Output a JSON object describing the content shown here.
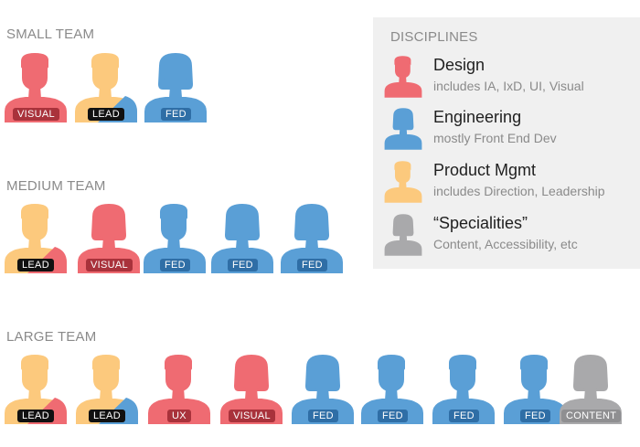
{
  "colors": {
    "design": "#ef6b72",
    "engineering": "#5a9fd6",
    "product": "#fcc97d",
    "specialities": "#a9a9ab",
    "badge_visual": "#a9323b",
    "badge_lead": "#111111",
    "badge_fed": "#2f6ea6",
    "badge_content": "#8f8f91"
  },
  "teams": [
    {
      "title": "SMALL TEAM",
      "members": [
        {
          "figure": "male",
          "color": "design",
          "badge": "VISUAL",
          "badge_color": "badge_visual",
          "icon": "person-male-icon"
        },
        {
          "figure": "male",
          "color": "product",
          "accent": "engineering",
          "badge": "LEAD",
          "badge_color": "badge_lead",
          "icon": "person-male-icon"
        },
        {
          "figure": "female",
          "color": "engineering",
          "badge": "FED",
          "badge_color": "badge_fed",
          "icon": "person-female-icon"
        }
      ]
    },
    {
      "title": "MEDIUM TEAM",
      "members": [
        {
          "figure": "male",
          "color": "product",
          "accent": "design",
          "badge": "LEAD",
          "badge_color": "badge_lead",
          "icon": "person-male-icon"
        },
        {
          "figure": "female",
          "color": "design",
          "badge": "VISUAL",
          "badge_color": "badge_visual",
          "icon": "person-female-icon"
        },
        {
          "figure": "male",
          "color": "engineering",
          "badge": "FED",
          "badge_color": "badge_fed",
          "icon": "person-male-icon"
        },
        {
          "figure": "female",
          "color": "engineering",
          "badge": "FED",
          "badge_color": "badge_fed",
          "icon": "person-female-icon"
        },
        {
          "figure": "female",
          "color": "engineering",
          "badge": "FED",
          "badge_color": "badge_fed",
          "icon": "person-female-icon"
        }
      ]
    },
    {
      "title": "LARGE TEAM",
      "members": [
        {
          "figure": "male",
          "color": "product",
          "accent": "design",
          "badge": "LEAD",
          "badge_color": "badge_lead",
          "icon": "person-male-icon"
        },
        {
          "figure": "male",
          "color": "product",
          "accent": "engineering",
          "badge": "LEAD",
          "badge_color": "badge_lead",
          "icon": "person-male-icon"
        },
        {
          "figure": "male",
          "color": "design",
          "badge": "UX",
          "badge_color": "badge_visual",
          "icon": "person-male-icon"
        },
        {
          "figure": "female",
          "color": "design",
          "badge": "VISUAL",
          "badge_color": "badge_visual",
          "icon": "person-female-icon"
        },
        {
          "figure": "female",
          "color": "engineering",
          "badge": "FED",
          "badge_color": "badge_fed",
          "icon": "person-female-icon"
        },
        {
          "figure": "male",
          "color": "engineering",
          "badge": "FED",
          "badge_color": "badge_fed",
          "icon": "person-male-icon"
        },
        {
          "figure": "male",
          "color": "engineering",
          "badge": "FED",
          "badge_color": "badge_fed",
          "icon": "person-male-icon"
        },
        {
          "figure": "male",
          "color": "engineering",
          "badge": "FED",
          "badge_color": "badge_fed",
          "icon": "person-male-icon"
        },
        {
          "figure": "female",
          "color": "specialities",
          "badge": "CONTENT",
          "badge_color": "badge_content",
          "icon": "person-female-icon"
        }
      ]
    }
  ],
  "legend": {
    "title": "DISCIPLINES",
    "items": [
      {
        "name": "Design",
        "desc": "includes IA, IxD, UI, Visual",
        "color": "design",
        "figure": "male",
        "icon": "person-male-icon"
      },
      {
        "name": "Engineering",
        "desc": "mostly Front End Dev",
        "color": "engineering",
        "figure": "female",
        "icon": "person-female-icon"
      },
      {
        "name": "Product Mgmt",
        "desc": "includes Direction, Leadership",
        "color": "product",
        "figure": "male",
        "icon": "person-male-icon"
      },
      {
        "name": "“Specialities”",
        "desc": "Content, Accessibility, etc",
        "color": "specialities",
        "figure": "female",
        "icon": "person-female-icon"
      }
    ]
  }
}
